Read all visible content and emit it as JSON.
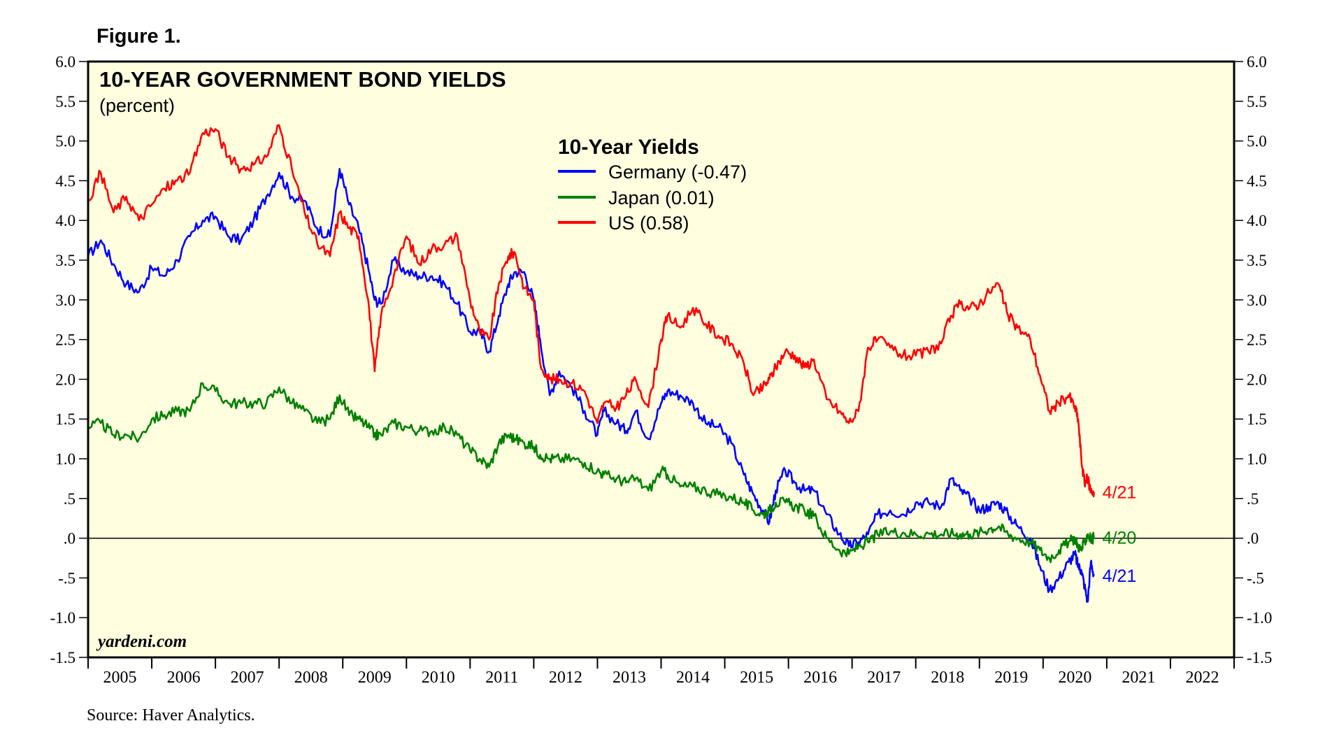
{
  "figure_label": "Figure 1.",
  "source": "Source: Haver Analytics.",
  "chart_data": {
    "type": "line",
    "title": "10-YEAR GOVERNMENT BOND YIELDS",
    "subtitle": "(percent)",
    "watermark": "yardeni.com",
    "ylim": [
      -1.5,
      6.0
    ],
    "xlim": [
      2004.5,
      2022.5
    ],
    "y_ticks": [
      -1.5,
      -1.0,
      -0.5,
      0.0,
      0.5,
      1.0,
      1.5,
      2.0,
      2.5,
      3.0,
      3.5,
      4.0,
      4.5,
      5.0,
      5.5,
      6.0
    ],
    "y_tick_labels": [
      "-1.5",
      "-1.0",
      "-.5",
      ".0",
      ".5",
      "1.0",
      "1.5",
      "2.0",
      "2.5",
      "3.0",
      "3.5",
      "4.0",
      "4.5",
      "5.0",
      "5.5",
      "6.0"
    ],
    "x_year_labels": [
      "2005",
      "2006",
      "2007",
      "2008",
      "2009",
      "2010",
      "2011",
      "2012",
      "2013",
      "2014",
      "2015",
      "2016",
      "2017",
      "2018",
      "2019",
      "2020",
      "2021",
      "2022"
    ],
    "zero_line": 0,
    "legend": {
      "title": "10-Year Yields",
      "position": "top-center",
      "entries": [
        "Germany (-0.47)",
        "Japan (0.01)",
        "US (0.58)"
      ]
    },
    "series": [
      {
        "name": "Germany",
        "color": "#0000ff",
        "end_label": "4/21",
        "end_label_value": -0.47,
        "x": [
          2004.5,
          2004.7,
          2004.9,
          2005.1,
          2005.3,
          2005.5,
          2005.7,
          2005.9,
          2006.1,
          2006.3,
          2006.5,
          2006.7,
          2006.9,
          2007.1,
          2007.3,
          2007.5,
          2007.7,
          2007.9,
          2008.1,
          2008.3,
          2008.45,
          2008.6,
          2008.75,
          2008.9,
          2009.0,
          2009.1,
          2009.3,
          2009.5,
          2009.7,
          2009.9,
          2010.1,
          2010.3,
          2010.5,
          2010.65,
          2010.8,
          2010.95,
          2011.1,
          2011.2,
          2011.35,
          2011.5,
          2011.6,
          2011.75,
          2011.9,
          2012.1,
          2012.3,
          2012.5,
          2012.6,
          2012.8,
          2012.95,
          2013.1,
          2013.3,
          2013.5,
          2013.6,
          2013.8,
          2014.0,
          2014.2,
          2014.4,
          2014.6,
          2014.8,
          2014.95,
          2015.1,
          2015.2,
          2015.3,
          2015.45,
          2015.6,
          2015.75,
          2015.9,
          2016.1,
          2016.3,
          2016.45,
          2016.6,
          2016.75,
          2016.9,
          2017.1,
          2017.3,
          2017.5,
          2017.7,
          2017.9,
          2018.05,
          2018.2,
          2018.35,
          2018.5,
          2018.65,
          2018.8,
          2018.95,
          2019.1,
          2019.3,
          2019.45,
          2019.6,
          2019.75,
          2019.9,
          2020.0,
          2020.05,
          2020.1,
          2020.15,
          2020.2,
          2020.25,
          2020.3
        ],
        "values": [
          3.55,
          3.75,
          3.45,
          3.2,
          3.1,
          3.4,
          3.3,
          3.5,
          3.8,
          4.0,
          4.05,
          3.8,
          3.75,
          4.0,
          4.3,
          4.6,
          4.3,
          4.25,
          3.9,
          3.8,
          4.65,
          4.2,
          3.9,
          3.4,
          3.0,
          2.95,
          3.5,
          3.35,
          3.3,
          3.3,
          3.2,
          2.95,
          2.6,
          2.6,
          2.35,
          2.8,
          3.2,
          3.35,
          3.35,
          3.0,
          2.5,
          1.8,
          2.1,
          1.9,
          1.6,
          1.3,
          1.6,
          1.45,
          1.35,
          1.6,
          1.25,
          1.7,
          1.85,
          1.8,
          1.7,
          1.45,
          1.4,
          1.2,
          0.8,
          0.55,
          0.35,
          0.2,
          0.6,
          0.85,
          0.7,
          0.6,
          0.6,
          0.3,
          0.05,
          -0.1,
          -0.05,
          0.05,
          0.3,
          0.35,
          0.3,
          0.45,
          0.45,
          0.4,
          0.75,
          0.6,
          0.5,
          0.35,
          0.4,
          0.45,
          0.3,
          0.15,
          0.0,
          -0.35,
          -0.65,
          -0.5,
          -0.3,
          -0.2,
          -0.35,
          -0.4,
          -0.6,
          -0.8,
          -0.3,
          -0.47
        ]
      },
      {
        "name": "Japan",
        "color": "#008000",
        "end_label": "4/20",
        "end_label_value": 0.01,
        "x": [
          2004.5,
          2004.7,
          2004.9,
          2005.1,
          2005.3,
          2005.5,
          2005.7,
          2005.9,
          2006.1,
          2006.3,
          2006.5,
          2006.7,
          2006.9,
          2007.1,
          2007.3,
          2007.5,
          2007.7,
          2007.9,
          2008.1,
          2008.3,
          2008.45,
          2008.6,
          2008.75,
          2008.9,
          2009.0,
          2009.1,
          2009.3,
          2009.5,
          2009.7,
          2009.9,
          2010.1,
          2010.3,
          2010.5,
          2010.65,
          2010.8,
          2010.95,
          2011.1,
          2011.2,
          2011.35,
          2011.5,
          2011.6,
          2011.75,
          2011.9,
          2012.1,
          2012.3,
          2012.5,
          2012.6,
          2012.8,
          2012.95,
          2013.1,
          2013.3,
          2013.5,
          2013.6,
          2013.8,
          2014.0,
          2014.2,
          2014.4,
          2014.6,
          2014.8,
          2014.95,
          2015.1,
          2015.2,
          2015.3,
          2015.45,
          2015.6,
          2015.75,
          2015.9,
          2016.1,
          2016.3,
          2016.45,
          2016.6,
          2016.75,
          2016.9,
          2017.1,
          2017.3,
          2017.5,
          2017.7,
          2017.9,
          2018.05,
          2018.2,
          2018.35,
          2018.5,
          2018.65,
          2018.8,
          2018.95,
          2019.1,
          2019.3,
          2019.45,
          2019.6,
          2019.75,
          2019.9,
          2020.0,
          2020.05,
          2020.1,
          2020.15,
          2020.2,
          2020.25,
          2020.3
        ],
        "values": [
          1.4,
          1.45,
          1.3,
          1.3,
          1.25,
          1.5,
          1.55,
          1.6,
          1.6,
          1.95,
          1.85,
          1.7,
          1.7,
          1.7,
          1.7,
          1.9,
          1.7,
          1.6,
          1.45,
          1.5,
          1.8,
          1.55,
          1.5,
          1.4,
          1.3,
          1.3,
          1.45,
          1.4,
          1.35,
          1.35,
          1.4,
          1.3,
          1.1,
          1.0,
          0.9,
          1.2,
          1.3,
          1.25,
          1.2,
          1.15,
          1.05,
          1.0,
          1.0,
          1.0,
          0.95,
          0.85,
          0.8,
          0.75,
          0.7,
          0.75,
          0.6,
          0.85,
          0.8,
          0.65,
          0.65,
          0.6,
          0.55,
          0.52,
          0.45,
          0.35,
          0.3,
          0.35,
          0.45,
          0.45,
          0.4,
          0.35,
          0.28,
          0.0,
          -0.15,
          -0.2,
          -0.1,
          -0.05,
          0.05,
          0.08,
          0.07,
          0.05,
          0.06,
          0.05,
          0.06,
          0.05,
          0.05,
          0.07,
          0.12,
          0.15,
          0.05,
          0.0,
          -0.05,
          -0.15,
          -0.25,
          -0.15,
          -0.05,
          0.0,
          -0.1,
          -0.15,
          -0.05,
          0.05,
          -0.02,
          0.01
        ]
      },
      {
        "name": "US",
        "color": "#ff0000",
        "end_label": "4/21",
        "end_label_value": 0.58,
        "x": [
          2004.5,
          2004.7,
          2004.9,
          2005.1,
          2005.3,
          2005.5,
          2005.7,
          2005.9,
          2006.1,
          2006.3,
          2006.5,
          2006.7,
          2006.9,
          2007.1,
          2007.3,
          2007.5,
          2007.7,
          2007.9,
          2008.1,
          2008.3,
          2008.45,
          2008.6,
          2008.75,
          2008.9,
          2009.0,
          2009.1,
          2009.3,
          2009.5,
          2009.7,
          2009.9,
          2010.1,
          2010.3,
          2010.5,
          2010.65,
          2010.8,
          2010.95,
          2011.1,
          2011.2,
          2011.35,
          2011.5,
          2011.6,
          2011.75,
          2011.9,
          2012.1,
          2012.3,
          2012.5,
          2012.6,
          2012.8,
          2012.95,
          2013.1,
          2013.3,
          2013.5,
          2013.6,
          2013.8,
          2014.0,
          2014.2,
          2014.4,
          2014.6,
          2014.8,
          2014.95,
          2015.1,
          2015.2,
          2015.3,
          2015.45,
          2015.6,
          2015.75,
          2015.9,
          2016.1,
          2016.3,
          2016.45,
          2016.6,
          2016.75,
          2016.9,
          2017.1,
          2017.3,
          2017.5,
          2017.7,
          2017.9,
          2018.05,
          2018.2,
          2018.35,
          2018.5,
          2018.65,
          2018.8,
          2018.95,
          2019.1,
          2019.3,
          2019.45,
          2019.6,
          2019.75,
          2019.9,
          2020.0,
          2020.05,
          2020.1,
          2020.15,
          2020.2,
          2020.25,
          2020.3
        ],
        "values": [
          4.25,
          4.6,
          4.1,
          4.3,
          4.0,
          4.2,
          4.4,
          4.5,
          4.6,
          5.1,
          5.15,
          4.8,
          4.65,
          4.7,
          4.8,
          5.2,
          4.65,
          4.1,
          3.7,
          3.55,
          4.1,
          3.9,
          3.8,
          3.0,
          2.1,
          2.8,
          3.3,
          3.8,
          3.45,
          3.65,
          3.7,
          3.8,
          3.0,
          2.6,
          2.5,
          3.2,
          3.55,
          3.6,
          3.15,
          3.0,
          2.2,
          2.0,
          2.0,
          1.95,
          1.85,
          1.45,
          1.7,
          1.65,
          1.8,
          2.0,
          1.65,
          2.5,
          2.8,
          2.65,
          2.9,
          2.7,
          2.55,
          2.45,
          2.2,
          1.8,
          1.9,
          2.0,
          2.15,
          2.35,
          2.3,
          2.15,
          2.25,
          1.75,
          1.6,
          1.45,
          1.6,
          2.4,
          2.5,
          2.4,
          2.3,
          2.3,
          2.35,
          2.45,
          2.8,
          2.95,
          2.9,
          2.95,
          3.1,
          3.2,
          2.8,
          2.65,
          2.5,
          2.05,
          1.6,
          1.7,
          1.8,
          1.65,
          1.5,
          1.0,
          0.7,
          0.75,
          0.6,
          0.58
        ]
      }
    ]
  }
}
